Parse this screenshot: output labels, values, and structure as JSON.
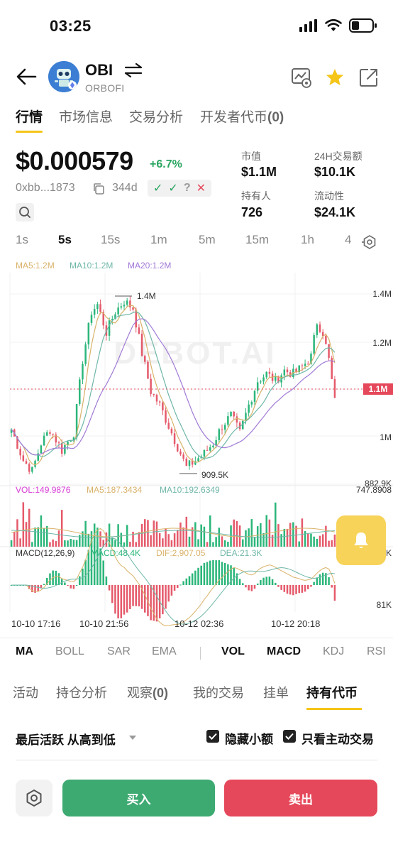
{
  "status_bar": {
    "time": "03:25"
  },
  "header": {
    "symbol": "OBI",
    "name": "ORBOFI",
    "icons": [
      "back-arrow-icon",
      "swap-icon",
      "chart-eye-icon",
      "star-icon",
      "share-icon"
    ],
    "star_color": "#f5c518"
  },
  "tabs": [
    {
      "label": "行情",
      "active": true
    },
    {
      "label": "市场信息",
      "active": false
    },
    {
      "label": "交易分析",
      "active": false
    },
    {
      "label": "开发者代币",
      "active": false
    }
  ],
  "tab_dev_count": "(0)",
  "price": {
    "value": "$0.000579",
    "change": "+6.7%",
    "address": "0xbb...1873",
    "age": "344d",
    "audit": [
      "✓",
      "✓",
      "?",
      "✕"
    ]
  },
  "stats": {
    "mcap_label": "市值",
    "mcap_value": "$1.1M",
    "vol_label": "24H交易额",
    "vol_value": "$10.1K",
    "holders_label": "持有人",
    "holders_value": "726",
    "liq_label": "流动性",
    "liq_value": "$24.1K"
  },
  "intervals": [
    "1s",
    "5s",
    "15s",
    "1m",
    "5m",
    "15m",
    "1h",
    "4"
  ],
  "active_interval": "5s",
  "chart_data": {
    "type": "candlestick",
    "watermark": "DEBOT.AI",
    "ma_legend": {
      "ma5": "MA5:1.2M",
      "ma10": "MA10:1.2M",
      "ma20": "MA20:1.2M"
    },
    "y_ticks": [
      "1.4M",
      "1.2M",
      "1M",
      "882.9K"
    ],
    "current_price_label": "1.1M",
    "high_label": "1.4M",
    "low_label": "909.5K",
    "vol_legend": {
      "vol": "VOL:149.9876",
      "ma5": "MA5:187.3434",
      "ma10": "MA10:192.6349"
    },
    "vol_max_label": "747.8908",
    "vol_right_label": "K",
    "macd_legend": {
      "name": "MACD(12,26,9)",
      "macd": "MACD:48.4K",
      "dif": "DIF:2,907.05",
      "dea": "DEA:21.3K"
    },
    "macd_right_label": "81K",
    "x_ticks": [
      "10-10 17:16",
      "10-10 21:56",
      "10-12 02:36",
      "10-12 20:18"
    ],
    "colors": {
      "up": "#2bb67a",
      "down": "#e55a6b",
      "ma5": "#d9b26a",
      "ma10": "#6fb7a8",
      "ma20": "#a07ad6",
      "vol_text": "#d63bd6",
      "price_line": "#e5485a"
    }
  },
  "indicators": {
    "main": [
      "MA",
      "BOLL",
      "SAR",
      "EMA"
    ],
    "sub": [
      "VOL",
      "MACD",
      "KDJ",
      "RSI"
    ]
  },
  "subtabs": [
    {
      "label": "活动",
      "active": false
    },
    {
      "label": "持仓分析",
      "active": false
    },
    {
      "label": "观察",
      "active": false
    },
    {
      "label": "我的交易",
      "active": false
    },
    {
      "label": "挂单",
      "active": false
    },
    {
      "label": "持有代币",
      "active": true
    }
  ],
  "watch_count": "(0)",
  "filter": {
    "sort_label": "最后活跃 从高到低",
    "hide_small": "隐藏小额",
    "active_only": "只看主动交易"
  },
  "actions": {
    "buy": "买入",
    "sell": "卖出"
  }
}
